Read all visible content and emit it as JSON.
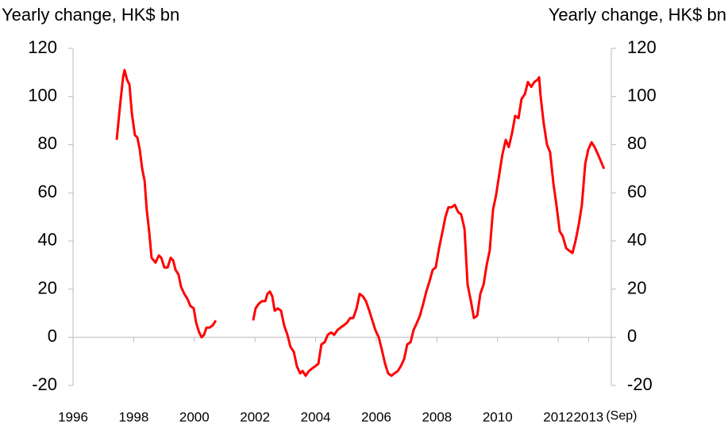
{
  "chart_data": {
    "type": "line",
    "title_left": "Yearly change, HK$ bn",
    "title_right": "Yearly change, HK$ bn",
    "annotation": "(Sep)",
    "xlim": [
      1996,
      2013.75
    ],
    "xticks": [
      1996,
      1998,
      2000,
      2002,
      2004,
      2006,
      2008,
      2010,
      2012,
      2013
    ],
    "ylim": [
      -20,
      120
    ],
    "yticks": [
      -20,
      0,
      20,
      40,
      60,
      80,
      100,
      120
    ],
    "grid": false,
    "series": [
      {
        "color": "#ff0000",
        "x": [
          1997.44,
          1997.54,
          1997.65,
          1997.7,
          1997.78,
          1997.86,
          1997.94,
          1998.04,
          1998.12,
          1998.2,
          1998.28,
          1998.36,
          1998.43,
          1998.51,
          1998.59,
          1998.72,
          1998.83,
          1998.91,
          1999.01,
          1999.12,
          1999.22,
          1999.3,
          1999.38,
          1999.48,
          1999.56,
          1999.67,
          1999.77,
          1999.87,
          1999.98,
          2000.06,
          2000.16,
          2000.24,
          2000.32,
          2000.4,
          2000.5,
          2000.61,
          2000.71,
          2001.5,
          2001.94,
          2002.02,
          2002.13,
          2002.23,
          2002.34,
          2002.41,
          2002.49,
          2002.57,
          2002.65,
          2002.75,
          2002.86,
          2002.96,
          2003.07,
          2003.17,
          2003.28,
          2003.38,
          2003.49,
          2003.57,
          2003.67,
          2003.78,
          2003.88,
          2003.99,
          2004.09,
          2004.19,
          2004.3,
          2004.4,
          2004.51,
          2004.61,
          2004.72,
          2004.82,
          2004.93,
          2005.03,
          2005.14,
          2005.24,
          2005.35,
          2005.45,
          2005.56,
          2005.66,
          2005.77,
          2005.87,
          2005.97,
          2006.08,
          2006.18,
          2006.29,
          2006.39,
          2006.5,
          2006.6,
          2006.71,
          2006.81,
          2006.92,
          2007.02,
          2007.13,
          2007.23,
          2007.34,
          2007.44,
          2007.55,
          2007.65,
          2007.75,
          2007.86,
          2007.96,
          2008.07,
          2008.17,
          2008.28,
          2008.38,
          2008.49,
          2008.59,
          2008.7,
          2008.8,
          2008.91,
          2009.01,
          2009.12,
          2009.22,
          2009.33,
          2009.43,
          2009.54,
          2009.64,
          2009.74,
          2009.85,
          2009.95,
          2010.06,
          2010.16,
          2010.27,
          2010.37,
          2010.48,
          2010.58,
          2010.69,
          2010.79,
          2010.9,
          2011.0,
          2011.11,
          2011.21,
          2011.32,
          2011.37,
          2011.42,
          2011.52,
          2011.63,
          2011.73,
          2011.84,
          2011.94,
          2012.05,
          2012.15,
          2012.26,
          2012.36,
          2012.47,
          2012.57,
          2012.68,
          2012.78,
          2012.89,
          2012.99,
          2013.1,
          2013.2,
          2013.31,
          2013.41,
          2013.51
        ],
        "values": [
          82,
          95,
          108,
          111,
          107,
          105,
          93,
          84,
          83,
          78,
          70,
          65,
          53,
          44,
          33,
          31,
          34,
          33,
          29,
          29,
          33,
          32,
          28,
          26,
          21,
          18,
          16,
          13,
          12,
          6,
          2,
          0,
          1,
          4,
          4,
          5,
          7,
          null,
          7,
          12,
          14,
          15,
          15,
          18,
          19,
          17,
          11,
          12,
          11,
          5,
          1,
          -4,
          -6,
          -12,
          -15,
          -14,
          -16,
          -14,
          -13,
          -12,
          -11,
          -3,
          -2,
          1,
          2,
          1,
          3,
          4,
          5,
          6,
          8,
          8,
          12,
          18,
          17,
          15,
          11,
          7,
          3,
          0,
          -5,
          -11,
          -15,
          -16,
          -15,
          -14,
          -12,
          -9,
          -3,
          -2,
          3,
          6,
          9,
          14,
          19,
          23,
          28,
          29,
          37,
          43,
          50,
          54,
          54,
          55,
          52,
          51,
          45,
          22,
          15,
          8,
          9,
          18,
          22,
          30,
          36,
          53,
          59,
          68,
          76,
          82,
          79,
          85,
          92,
          91,
          99,
          101,
          106,
          104,
          106,
          107,
          108,
          100,
          89,
          80,
          77,
          64,
          55,
          44,
          42,
          37,
          36,
          35,
          40,
          47,
          55,
          72,
          78,
          81,
          79,
          76,
          73,
          70
        ]
      }
    ]
  }
}
